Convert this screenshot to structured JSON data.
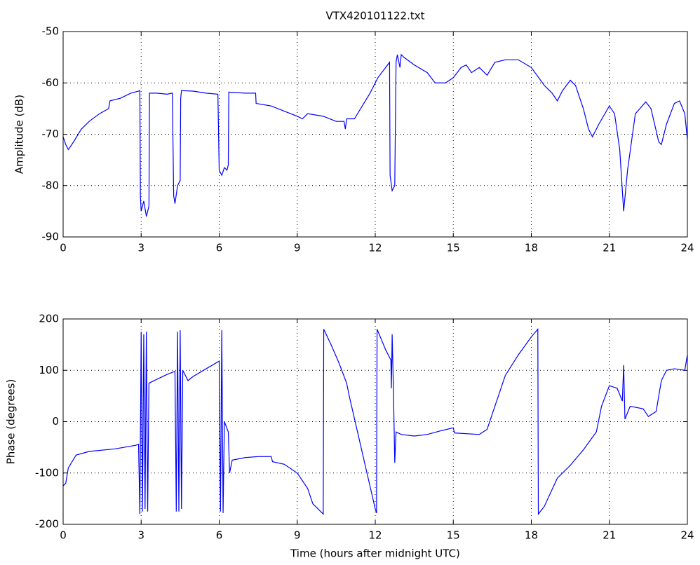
{
  "chart_data": [
    {
      "type": "line",
      "title": "VTX420101122.txt",
      "ylabel": "Amplitude (dB)",
      "xlim": [
        0,
        24
      ],
      "xticks": [
        0,
        3,
        6,
        9,
        12,
        15,
        18,
        21,
        24
      ],
      "ylim": [
        -90,
        -50
      ],
      "yticks": [
        -90,
        -80,
        -70,
        -60,
        -50
      ],
      "grid": true,
      "x": [
        0,
        0.1,
        0.2,
        0.4,
        0.7,
        1.0,
        1.4,
        1.75,
        1.8,
        2.2,
        2.6,
        2.9,
        2.95,
        2.97,
        3.0,
        3.1,
        3.2,
        3.3,
        3.32,
        3.6,
        4.0,
        4.2,
        4.25,
        4.3,
        4.4,
        4.5,
        4.52,
        4.55,
        5.0,
        5.5,
        5.95,
        6.0,
        6.1,
        6.2,
        6.3,
        6.35,
        6.37,
        7.0,
        7.4,
        7.42,
        8.0,
        8.5,
        9.0,
        9.2,
        9.4,
        10.0,
        10.5,
        10.8,
        10.85,
        10.9,
        11.2,
        11.5,
        11.8,
        12.1,
        12.4,
        12.55,
        12.57,
        12.65,
        12.75,
        12.8,
        12.85,
        12.95,
        13.0,
        13.1,
        13.5,
        14.0,
        14.3,
        14.7,
        15.0,
        15.3,
        15.5,
        15.7,
        16.0,
        16.3,
        16.6,
        17.0,
        17.5,
        18.0,
        18.5,
        18.8,
        19.0,
        19.2,
        19.5,
        19.7,
        20.0,
        20.2,
        20.35,
        20.6,
        21.0,
        21.2,
        21.4,
        21.55,
        21.7,
        22.0,
        22.4,
        22.6,
        22.9,
        23.0,
        23.2,
        23.5,
        23.7,
        23.9,
        24
      ],
      "series": [
        {
          "name": "Amplitude",
          "color": "#0000ff",
          "values": [
            -70.5,
            -72,
            -73,
            -71.5,
            -69,
            -67.5,
            -66,
            -65,
            -63.5,
            -63,
            -62,
            -61.6,
            -61.5,
            -82,
            -85,
            -83,
            -86,
            -84,
            -62,
            -62,
            -62.2,
            -62,
            -82,
            -83.5,
            -80,
            -79,
            -63,
            -61.5,
            -61.6,
            -62,
            -62.2,
            -77,
            -78,
            -76.5,
            -77,
            -76,
            -61.8,
            -62,
            -62,
            -64,
            -64.5,
            -65.5,
            -66.5,
            -67,
            -66,
            -66.5,
            -67.5,
            -67.5,
            -69,
            -67,
            -67,
            -64.5,
            -62,
            -59,
            -57,
            -56,
            -78,
            -81,
            -80,
            -56,
            -54.5,
            -57,
            -54.5,
            -55,
            -56.5,
            -58,
            -60,
            -60,
            -59,
            -57,
            -56.5,
            -58,
            -57,
            -58.5,
            -56,
            -55.5,
            -55.5,
            -57,
            -60.5,
            -62,
            -63.5,
            -61.5,
            -59.5,
            -60.5,
            -65,
            -69,
            -70.5,
            -68,
            -64.5,
            -66,
            -73,
            -85,
            -77,
            -66,
            -63.7,
            -65,
            -71.5,
            -72,
            -68,
            -64,
            -63.5,
            -66,
            -71
          ]
        }
      ]
    },
    {
      "type": "line",
      "xlabel": "Time (hours after midnight UTC)",
      "ylabel": "Phase (degrees)",
      "xlim": [
        0,
        24
      ],
      "xticks": [
        0,
        3,
        6,
        9,
        12,
        15,
        18,
        21,
        24
      ],
      "ylim": [
        -200,
        200
      ],
      "yticks": [
        -200,
        -100,
        0,
        100,
        200
      ],
      "grid": true,
      "x": [
        0,
        0.1,
        0.2,
        0.5,
        1,
        2,
        2.8,
        2.9,
        2.95,
        3.0,
        3.05,
        3.1,
        3.15,
        3.2,
        3.25,
        3.3,
        3.5,
        4.0,
        4.3,
        4.35,
        4.4,
        4.45,
        4.5,
        4.55,
        4.6,
        4.8,
        5.0,
        5.5,
        6.0,
        6.05,
        6.1,
        6.15,
        6.2,
        6.35,
        6.4,
        6.5,
        7,
        7.5,
        8,
        8.05,
        8.5,
        9,
        9.4,
        9.6,
        9.9,
        10.0,
        10.02,
        10.3,
        10.6,
        10.9,
        11.0,
        11.5,
        12.0,
        12.05,
        12.07,
        12.4,
        12.6,
        12.62,
        12.65,
        12.7,
        12.75,
        12.8,
        13.0,
        13.5,
        14,
        14.5,
        15,
        15.05,
        16,
        16.3,
        16.6,
        17.0,
        17.5,
        18.0,
        18.25,
        18.27,
        18.5,
        19,
        19.5,
        20,
        20.5,
        20.7,
        21.0,
        21.3,
        21.5,
        21.55,
        21.6,
        21.8,
        22.3,
        22.5,
        22.8,
        23.0,
        23.2,
        23.5,
        23.9,
        24
      ],
      "series": [
        {
          "name": "Phase",
          "color": "#0000ff",
          "values": [
            -125,
            -120,
            -90,
            -65,
            -58,
            -53,
            -46,
            -44,
            -180,
            175,
            -175,
            170,
            -170,
            175,
            -175,
            75,
            80,
            92,
            98,
            -175,
            175,
            -175,
            178,
            -170,
            100,
            80,
            88,
            103,
            118,
            -175,
            178,
            -178,
            0,
            -20,
            -100,
            -75,
            -70,
            -68,
            -68,
            -78,
            -83,
            -100,
            -130,
            -160,
            -175,
            -180,
            180,
            150,
            115,
            75,
            50,
            -60,
            -170,
            -178,
            180,
            140,
            120,
            65,
            170,
            60,
            -80,
            -20,
            -25,
            -28,
            -25,
            -18,
            -12,
            -22,
            -25,
            -15,
            30,
            90,
            130,
            165,
            180,
            -180,
            -165,
            -110,
            -85,
            -55,
            -20,
            30,
            70,
            65,
            40,
            110,
            5,
            30,
            25,
            10,
            20,
            80,
            100,
            103,
            100,
            130
          ]
        }
      ]
    }
  ]
}
